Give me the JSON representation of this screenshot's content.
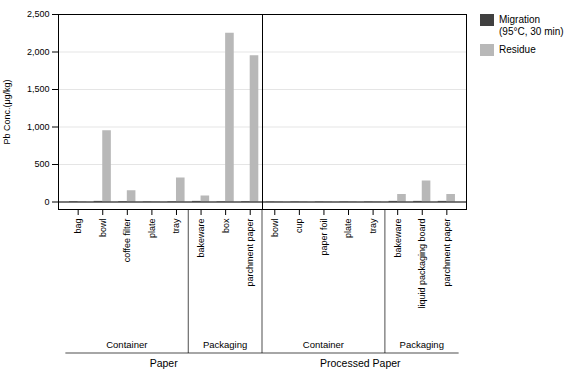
{
  "chart_data": {
    "type": "bar",
    "categories": [
      "bag",
      "bowl",
      "coffee filter",
      "plate",
      "tray",
      "bakeware",
      "box",
      "parchment paper",
      "bowl",
      "cup",
      "paper foil",
      "plate",
      "tray",
      "bakeware",
      "liquid packaging board",
      "parchment paper"
    ],
    "groups": [
      "Paper",
      "Paper",
      "Paper",
      "Paper",
      "Paper",
      "Paper",
      "Paper",
      "Paper",
      "Processed Paper",
      "Processed Paper",
      "Processed Paper",
      "Processed Paper",
      "Processed Paper",
      "Processed Paper",
      "Processed Paper",
      "Processed Paper"
    ],
    "subgroups": [
      "Container",
      "Container",
      "Container",
      "Container",
      "Container",
      "Packaging",
      "Packaging",
      "Packaging",
      "Container",
      "Container",
      "Container",
      "Container",
      "Container",
      "Packaging",
      "Packaging",
      "Packaging"
    ],
    "series": [
      {
        "name": "Migration\n(95°C, 30 min)",
        "color": "#404040",
        "values": [
          5,
          8,
          5,
          3,
          4,
          8,
          4,
          5,
          3,
          3,
          3,
          3,
          3,
          8,
          8,
          8
        ]
      },
      {
        "name": "Residue",
        "color": "#b8b8b8",
        "values": [
          5,
          950,
          150,
          5,
          320,
          80,
          2250,
          1950,
          5,
          5,
          5,
          5,
          5,
          100,
          280,
          100
        ]
      }
    ],
    "ylabel": "Pb Conc.(μg/kg)",
    "ylim": [
      -100,
      2500
    ],
    "yticks": [
      0,
      500,
      1000,
      1500,
      2000,
      2500
    ],
    "grid": true,
    "legend": "upper right"
  }
}
